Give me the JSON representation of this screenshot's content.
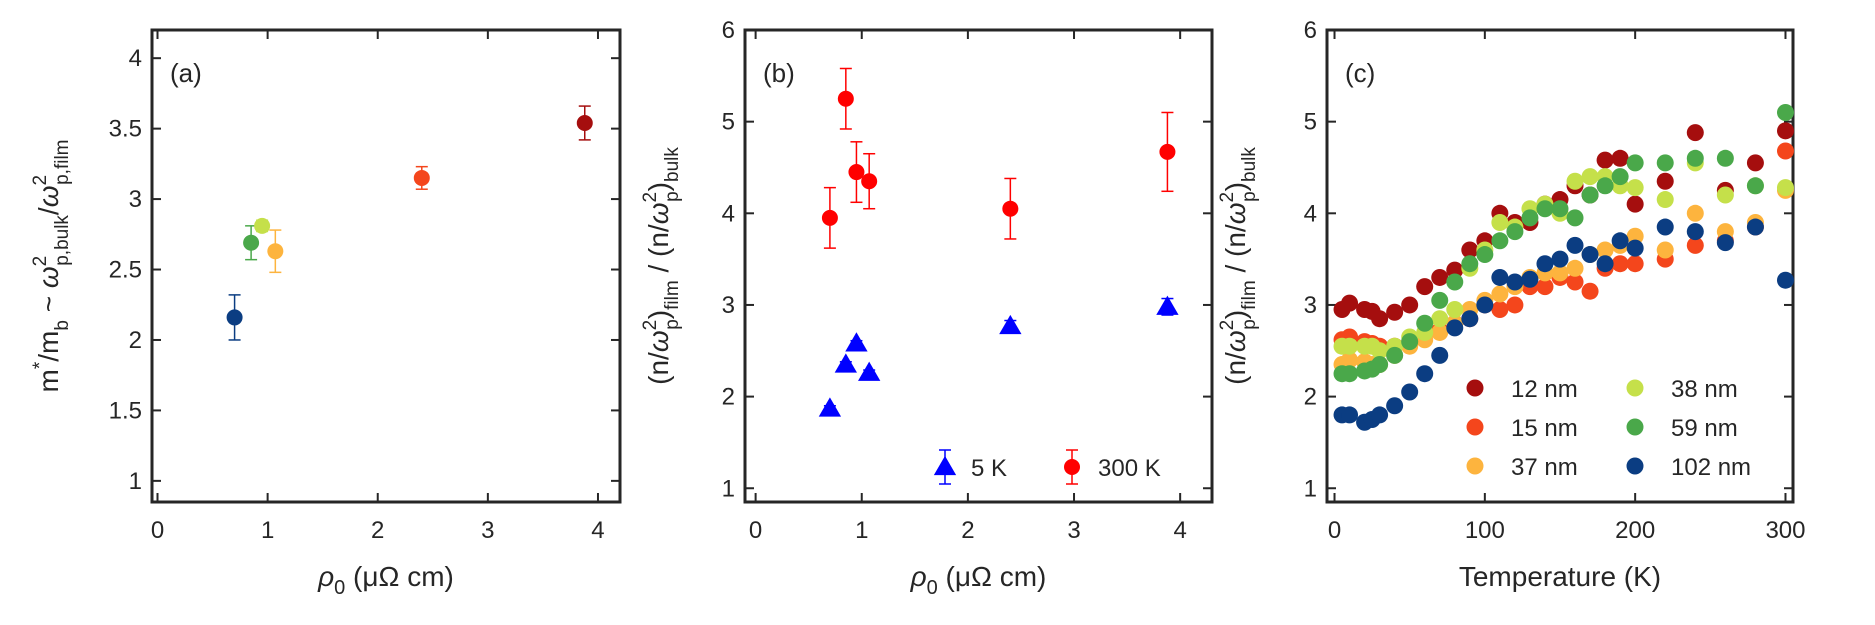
{
  "chart_data": [
    {
      "type": "scatter",
      "panel": "(a)",
      "xlabel": "ρ",
      "xlabel_sub": "0",
      "xlabel_units": "(μΩ cm)",
      "ylabel": "m*/m_b ~ ω²_p,bulk/ω²_p,film",
      "xlim": [
        -0.05,
        4.2
      ],
      "ylim": [
        0.85,
        4.2
      ],
      "xticks": [
        "0",
        "1",
        "2",
        "3",
        "4"
      ],
      "yticks": [
        "1",
        "1.5",
        "2",
        "2.5",
        "3",
        "3.5",
        "4"
      ],
      "points": [
        {
          "x": 0.7,
          "y": 2.16,
          "err": 0.16,
          "color": "#0b3d82",
          "label": "102 nm"
        },
        {
          "x": 0.85,
          "y": 2.69,
          "err": 0.12,
          "color": "#4aa84a",
          "label": "59 nm"
        },
        {
          "x": 0.95,
          "y": 2.81,
          "err": 0.04,
          "color": "#c5e04a",
          "label": "38 nm"
        },
        {
          "x": 1.07,
          "y": 2.63,
          "err": 0.15,
          "color": "#fdb43e",
          "label": "37 nm"
        },
        {
          "x": 2.4,
          "y": 3.15,
          "err": 0.08,
          "color": "#f4461c",
          "label": "15 nm"
        },
        {
          "x": 3.88,
          "y": 3.54,
          "err": 0.12,
          "color": "#a50e0e",
          "label": "12 nm"
        }
      ]
    },
    {
      "type": "scatter",
      "panel": "(b)",
      "xlabel": "ρ",
      "xlabel_sub": "0",
      "xlabel_units": "(μΩ cm)",
      "ylabel": "(n/ω²_p)_film / (n/ω²_p)_bulk",
      "xlim": [
        -0.1,
        4.3
      ],
      "ylim": [
        0.85,
        6.0
      ],
      "xticks": [
        "0",
        "1",
        "2",
        "3",
        "4"
      ],
      "yticks": [
        "1",
        "2",
        "3",
        "4",
        "5",
        "6"
      ],
      "series": [
        {
          "name": "5 K",
          "marker": "triangle",
          "color": "#0000ff",
          "points": [
            {
              "x": 0.7,
              "y": 1.87,
              "err": 0.03
            },
            {
              "x": 0.85,
              "y": 2.35,
              "err": 0.03
            },
            {
              "x": 0.95,
              "y": 2.58,
              "err": 0.03
            },
            {
              "x": 1.07,
              "y": 2.26,
              "err": 0.03
            },
            {
              "x": 2.4,
              "y": 2.77,
              "err": 0.06
            },
            {
              "x": 3.88,
              "y": 2.98,
              "err": 0.09
            }
          ]
        },
        {
          "name": "300 K",
          "marker": "circle",
          "color": "#ff0000",
          "points": [
            {
              "x": 0.7,
              "y": 3.95,
              "err": 0.33
            },
            {
              "x": 0.85,
              "y": 5.25,
              "err": 0.33
            },
            {
              "x": 0.95,
              "y": 4.45,
              "err": 0.33
            },
            {
              "x": 1.07,
              "y": 4.35,
              "err": 0.3
            },
            {
              "x": 2.4,
              "y": 4.05,
              "err": 0.33
            },
            {
              "x": 3.88,
              "y": 4.67,
              "err": 0.43
            }
          ]
        }
      ],
      "legend": [
        "5 K",
        "300 K"
      ]
    },
    {
      "type": "scatter",
      "panel": "(c)",
      "xlabel": "Temperature (K)",
      "ylabel": "(n/ω²_p)_film / (n/ω²_p)_bulk",
      "xlim": [
        -5,
        305
      ],
      "ylim": [
        0.85,
        6.0
      ],
      "xticks": [
        "0",
        "100",
        "200",
        "300"
      ],
      "yticks": [
        "1",
        "2",
        "3",
        "4",
        "5",
        "6"
      ],
      "series": [
        {
          "name": "12 nm",
          "color": "#a50e0e",
          "x": [
            5,
            10,
            20,
            25,
            30,
            40,
            50,
            60,
            70,
            80,
            90,
            100,
            110,
            120,
            130,
            140,
            150,
            160,
            170,
            180,
            190,
            200,
            220,
            240,
            260,
            280,
            300
          ],
          "y": [
            2.95,
            3.02,
            2.95,
            2.93,
            2.85,
            2.92,
            3.0,
            3.2,
            3.3,
            3.38,
            3.6,
            3.7,
            4.0,
            3.9,
            3.9,
            4.1,
            4.15,
            4.3,
            4.2,
            4.58,
            4.6,
            4.1,
            4.35,
            4.88,
            4.25,
            4.55,
            4.9
          ]
        },
        {
          "name": "15 nm",
          "color": "#f4461c",
          "x": [
            5,
            10,
            20,
            25,
            30,
            40,
            50,
            60,
            70,
            80,
            90,
            100,
            110,
            120,
            130,
            140,
            150,
            160,
            170,
            180,
            190,
            200,
            220,
            240,
            260,
            280,
            300
          ],
          "y": [
            2.62,
            2.65,
            2.6,
            2.58,
            2.55,
            2.55,
            2.6,
            2.68,
            2.72,
            2.8,
            2.85,
            3.0,
            2.95,
            3.0,
            3.2,
            3.2,
            3.3,
            3.25,
            3.15,
            3.4,
            3.45,
            3.45,
            3.5,
            3.65,
            3.7,
            3.85,
            4.68
          ]
        },
        {
          "name": "37 nm",
          "color": "#fdb43e",
          "x": [
            5,
            10,
            20,
            25,
            30,
            40,
            50,
            60,
            70,
            80,
            90,
            100,
            110,
            120,
            130,
            140,
            150,
            160,
            170,
            180,
            190,
            200,
            220,
            240,
            260,
            280,
            300
          ],
          "y": [
            2.35,
            2.4,
            2.38,
            2.35,
            2.35,
            2.45,
            2.55,
            2.62,
            2.7,
            2.8,
            2.95,
            3.05,
            3.12,
            3.2,
            3.3,
            3.35,
            3.35,
            3.4,
            3.55,
            3.6,
            3.65,
            3.75,
            3.6,
            4.0,
            3.8,
            3.9,
            4.25
          ]
        },
        {
          "name": "38 nm",
          "color": "#c5e04a",
          "x": [
            5,
            10,
            20,
            25,
            30,
            40,
            50,
            60,
            70,
            80,
            90,
            100,
            110,
            120,
            130,
            140,
            150,
            160,
            170,
            180,
            190,
            200,
            220,
            240,
            260,
            280,
            300
          ],
          "y": [
            2.55,
            2.55,
            2.55,
            2.55,
            2.5,
            2.55,
            2.65,
            2.7,
            2.85,
            2.95,
            3.4,
            3.6,
            3.9,
            3.85,
            4.05,
            4.1,
            4.0,
            4.35,
            4.4,
            4.4,
            4.3,
            4.28,
            4.15,
            4.55,
            4.2,
            4.3,
            4.28
          ]
        },
        {
          "name": "59 nm",
          "color": "#4aa84a",
          "x": [
            5,
            10,
            20,
            25,
            30,
            40,
            50,
            60,
            70,
            80,
            90,
            100,
            110,
            120,
            130,
            140,
            150,
            160,
            170,
            180,
            190,
            200,
            220,
            240,
            260,
            280,
            300
          ],
          "y": [
            2.25,
            2.25,
            2.28,
            2.3,
            2.35,
            2.45,
            2.6,
            2.8,
            3.05,
            3.25,
            3.45,
            3.55,
            3.7,
            3.8,
            3.95,
            4.05,
            4.05,
            3.95,
            4.2,
            4.3,
            4.4,
            4.55,
            4.55,
            4.6,
            4.6,
            4.3,
            5.1
          ]
        },
        {
          "name": "102 nm",
          "color": "#0b3d82",
          "x": [
            5,
            10,
            20,
            25,
            30,
            40,
            50,
            60,
            70,
            80,
            90,
            100,
            110,
            120,
            130,
            140,
            150,
            160,
            170,
            180,
            190,
            200,
            220,
            240,
            260,
            280,
            300
          ],
          "y": [
            1.8,
            1.8,
            1.72,
            1.75,
            1.8,
            1.9,
            2.05,
            2.25,
            2.45,
            2.75,
            2.85,
            3.0,
            3.3,
            3.25,
            3.28,
            3.45,
            3.5,
            3.65,
            3.55,
            3.45,
            3.7,
            3.62,
            3.85,
            3.8,
            3.68,
            3.85,
            3.27
          ]
        }
      ],
      "legend": [
        "12 nm",
        "38 nm",
        "15 nm",
        "59 nm",
        "37 nm",
        "102 nm"
      ]
    }
  ]
}
